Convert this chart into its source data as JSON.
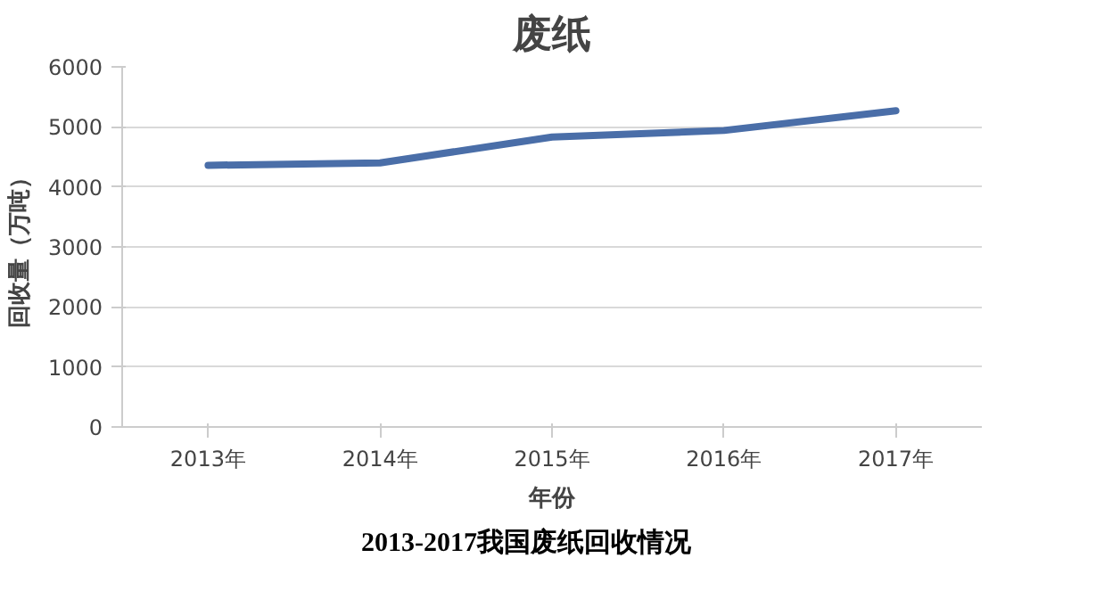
{
  "chart_data": {
    "type": "line",
    "title": "废纸",
    "xlabel": "年份",
    "ylabel": "回收量（万吨）",
    "categories": [
      "2013年",
      "2014年",
      "2015年",
      "2016年",
      "2017年"
    ],
    "series": [
      {
        "color": "#4a6ea8",
        "values": [
          4360,
          4400,
          4830,
          4940,
          5270
        ]
      }
    ],
    "ylim": [
      0,
      6000
    ],
    "yticks": [
      0,
      1000,
      2000,
      3000,
      4000,
      5000,
      6000
    ],
    "grid": "y",
    "marker": "none",
    "line_style": "solid",
    "annotations": [
      "2013-2017我国废纸回收情况"
    ]
  }
}
